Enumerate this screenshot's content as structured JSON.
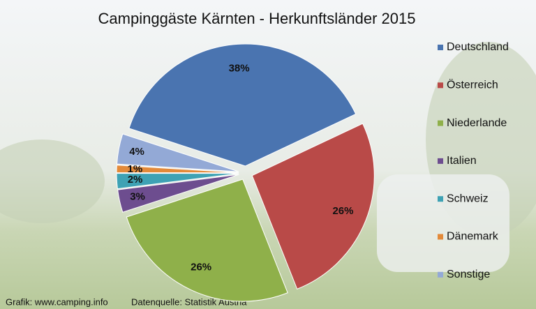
{
  "chart_data": {
    "type": "pie",
    "title": "Campinggäste Kärnten - Herkunftsländer 2015",
    "categories": [
      "Deutschland",
      "Österreich",
      "Niederlande",
      "Italien",
      "Schweiz",
      "Dänemark",
      "Sonstige"
    ],
    "values": [
      38,
      26,
      26,
      3,
      2,
      1,
      4
    ],
    "value_labels": [
      "38%",
      "26%",
      "26%",
      "3%",
      "2%",
      "1%",
      "4%"
    ],
    "colors": [
      "#4a74b0",
      "#b94a48",
      "#8fb04a",
      "#6d4d8f",
      "#3ea2b4",
      "#e38a3a",
      "#93a9d6"
    ],
    "legend": "right",
    "notes": [
      "Grafik: www.camping.info",
      "Datenquelle: Statistik Austria"
    ]
  }
}
